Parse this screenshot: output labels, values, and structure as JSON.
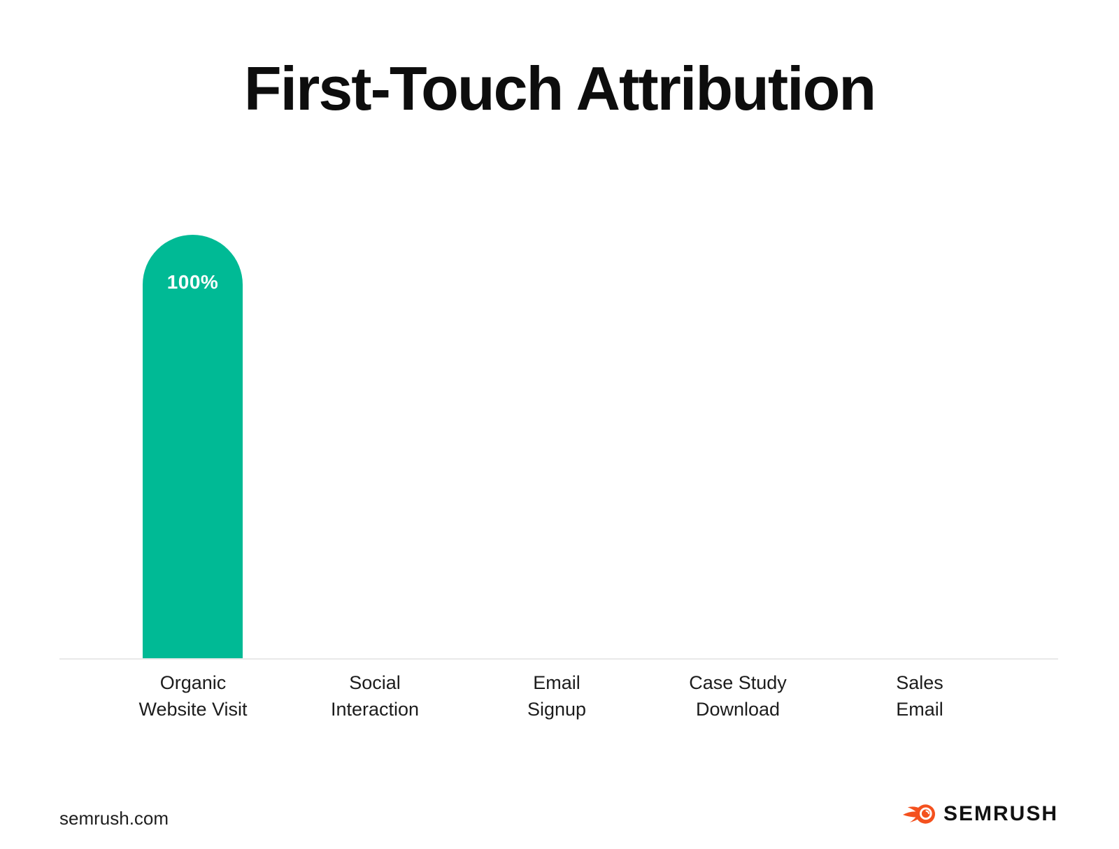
{
  "chart_data": {
    "type": "bar",
    "title": "First-Touch Attribution",
    "categories": [
      [
        "Organic",
        "Website Visit"
      ],
      [
        "Social",
        "Interaction"
      ],
      [
        "Email",
        "Signup"
      ],
      [
        "Case Study",
        "Download"
      ],
      [
        "Sales",
        "Email"
      ]
    ],
    "values": [
      100,
      0,
      0,
      0,
      0
    ],
    "value_labels": [
      "100%",
      "",
      "",
      "",
      ""
    ],
    "unit": "%",
    "ylim": [
      0,
      100
    ],
    "grid": false,
    "legend": "none",
    "y_axis_ticks": "none",
    "bar_color": "#00BA95",
    "value_label_color": "#FFFFFF",
    "baseline_color": "#E9E9E9"
  },
  "footer": {
    "source_text": "semrush.com",
    "brand_name": "SEMRUSH",
    "brand_orange": "#F4511E",
    "brand_text_color": "#121212"
  }
}
